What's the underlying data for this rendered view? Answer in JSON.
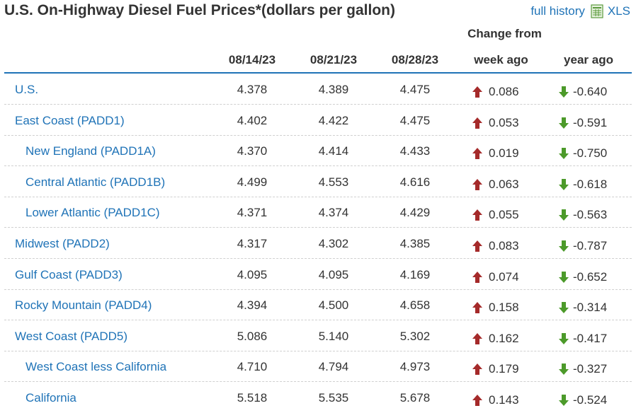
{
  "title": "U.S. On-Highway Diesel Fuel Prices*(dollars per gallon)",
  "links": {
    "full_history": "full history",
    "xls": "XLS"
  },
  "header": {
    "change_from": "Change from",
    "dates": [
      "08/14/23",
      "08/21/23",
      "08/28/23"
    ],
    "week_ago": "week ago",
    "year_ago": "year ago"
  },
  "colors": {
    "link": "#1f73b7",
    "up_arrow": "#a52a2a",
    "down_arrow": "#4c9a2a",
    "rule": "#1f73b7"
  },
  "rows": [
    {
      "label": "U.S.",
      "sub": false,
      "v1": "4.378",
      "v2": "4.389",
      "v3": "4.475",
      "week": "0.086",
      "year": "-0.640"
    },
    {
      "label": "East Coast (PADD1)",
      "sub": false,
      "v1": "4.402",
      "v2": "4.422",
      "v3": "4.475",
      "week": "0.053",
      "year": "-0.591"
    },
    {
      "label": "New England (PADD1A)",
      "sub": true,
      "v1": "4.370",
      "v2": "4.414",
      "v3": "4.433",
      "week": "0.019",
      "year": "-0.750"
    },
    {
      "label": "Central Atlantic (PADD1B)",
      "sub": true,
      "v1": "4.499",
      "v2": "4.553",
      "v3": "4.616",
      "week": "0.063",
      "year": "-0.618"
    },
    {
      "label": "Lower Atlantic (PADD1C)",
      "sub": true,
      "v1": "4.371",
      "v2": "4.374",
      "v3": "4.429",
      "week": "0.055",
      "year": "-0.563"
    },
    {
      "label": "Midwest (PADD2)",
      "sub": false,
      "v1": "4.317",
      "v2": "4.302",
      "v3": "4.385",
      "week": "0.083",
      "year": "-0.787"
    },
    {
      "label": "Gulf Coast (PADD3)",
      "sub": false,
      "v1": "4.095",
      "v2": "4.095",
      "v3": "4.169",
      "week": "0.074",
      "year": "-0.652"
    },
    {
      "label": "Rocky Mountain (PADD4)",
      "sub": false,
      "v1": "4.394",
      "v2": "4.500",
      "v3": "4.658",
      "week": "0.158",
      "year": "-0.314"
    },
    {
      "label": "West Coast (PADD5)",
      "sub": false,
      "v1": "5.086",
      "v2": "5.140",
      "v3": "5.302",
      "week": "0.162",
      "year": "-0.417"
    },
    {
      "label": "West Coast less California",
      "sub": true,
      "v1": "4.710",
      "v2": "4.794",
      "v3": "4.973",
      "week": "0.179",
      "year": "-0.327"
    },
    {
      "label": "California",
      "sub": true,
      "v1": "5.518",
      "v2": "5.535",
      "v3": "5.678",
      "week": "0.143",
      "year": "-0.524"
    }
  ]
}
